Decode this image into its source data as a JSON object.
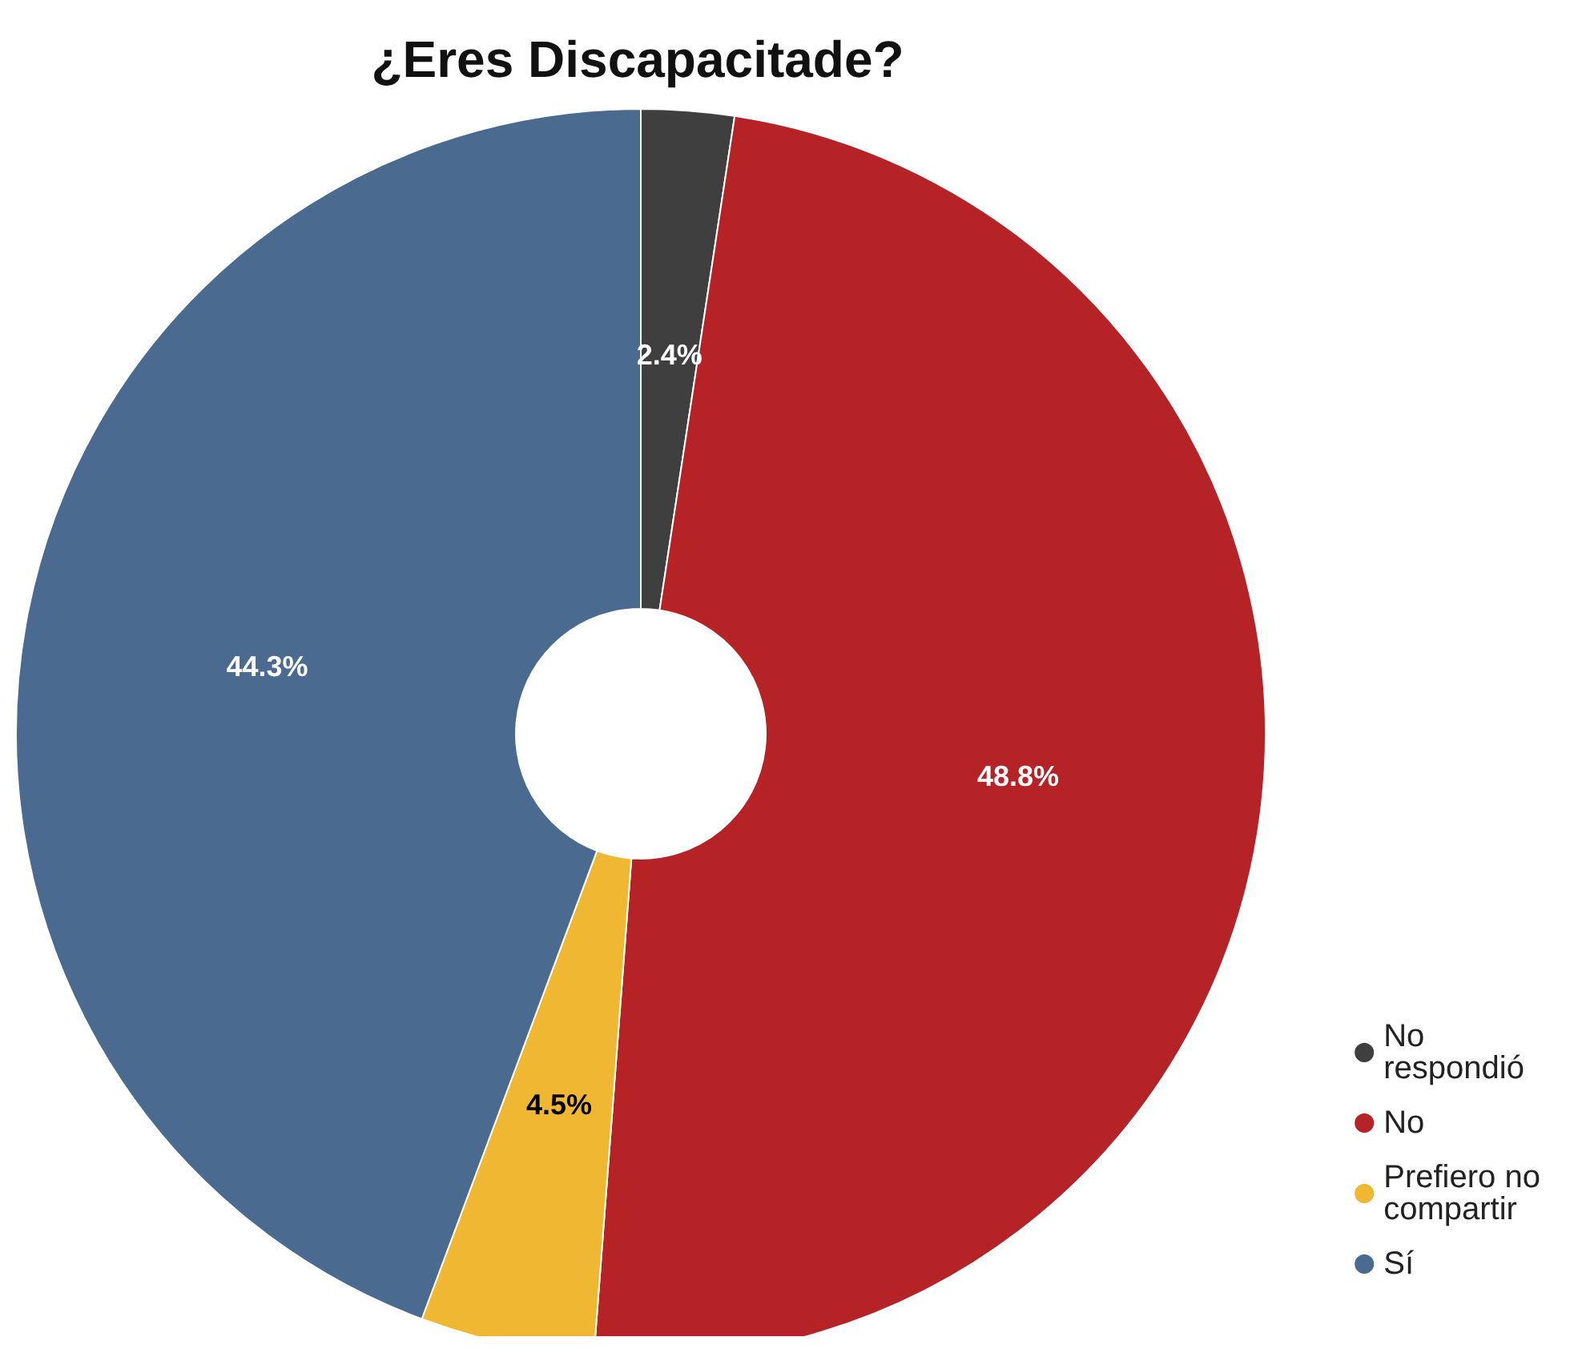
{
  "chart_data": {
    "type": "donut",
    "title": "¿Eres Discapacitade?",
    "categories": [
      "No respondió",
      "No",
      "Prefiero no compartir",
      "Sí"
    ],
    "values": [
      2.4,
      48.8,
      4.5,
      44.3
    ],
    "colors": [
      "#3f3f3f",
      "#b52327",
      "#f0b832",
      "#4a6a90"
    ],
    "value_labels": [
      "2.4%",
      "48.8%",
      "4.5%",
      "44.3%"
    ],
    "legend": "bottom right"
  }
}
